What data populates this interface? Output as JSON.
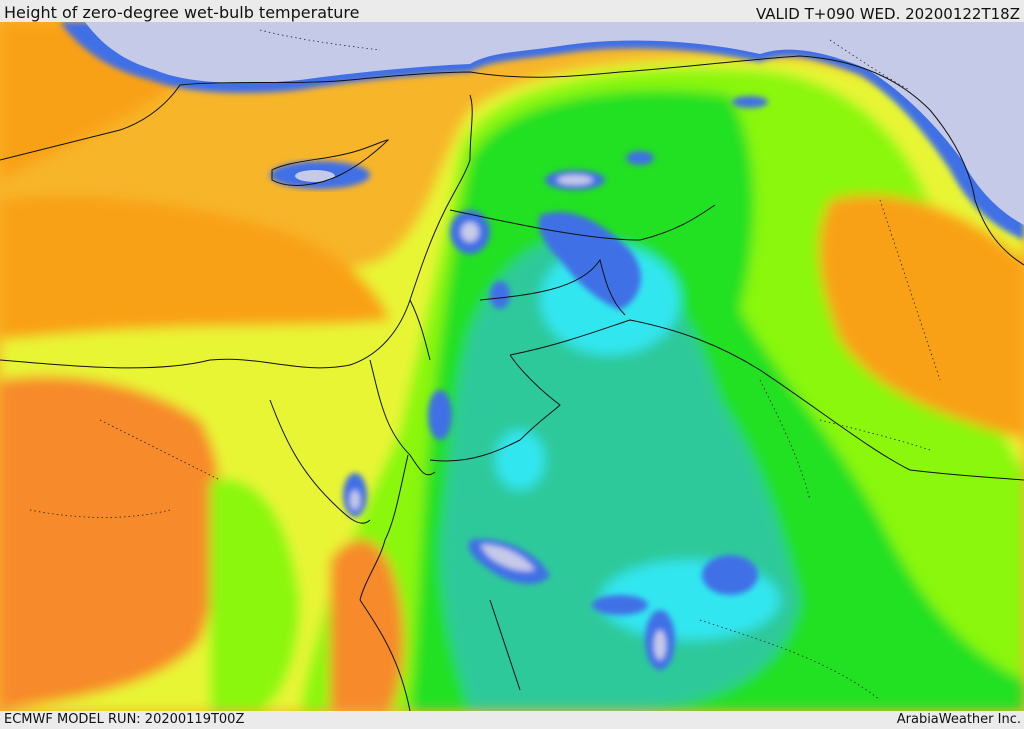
{
  "header": {
    "title": "Height of zero-degree wet-bulb temperature",
    "valid": "VALID T+090 WED. 20200122T18Z"
  },
  "footer": {
    "run": "ECMWF MODEL RUN: 20200119T00Z",
    "credit": "ArabiaWeather Inc."
  },
  "colors": {
    "sea_light": "#c6cae9",
    "blue": "#3f6fe6",
    "cyan": "#33e6f0",
    "teal": "#2ec99a",
    "green": "#22e024",
    "lime": "#8af70c",
    "yellow": "#e8f534",
    "amber": "#f8b62a",
    "orange": "#f9a113",
    "dark_orange": "#f78a2c",
    "border": "#111111"
  }
}
